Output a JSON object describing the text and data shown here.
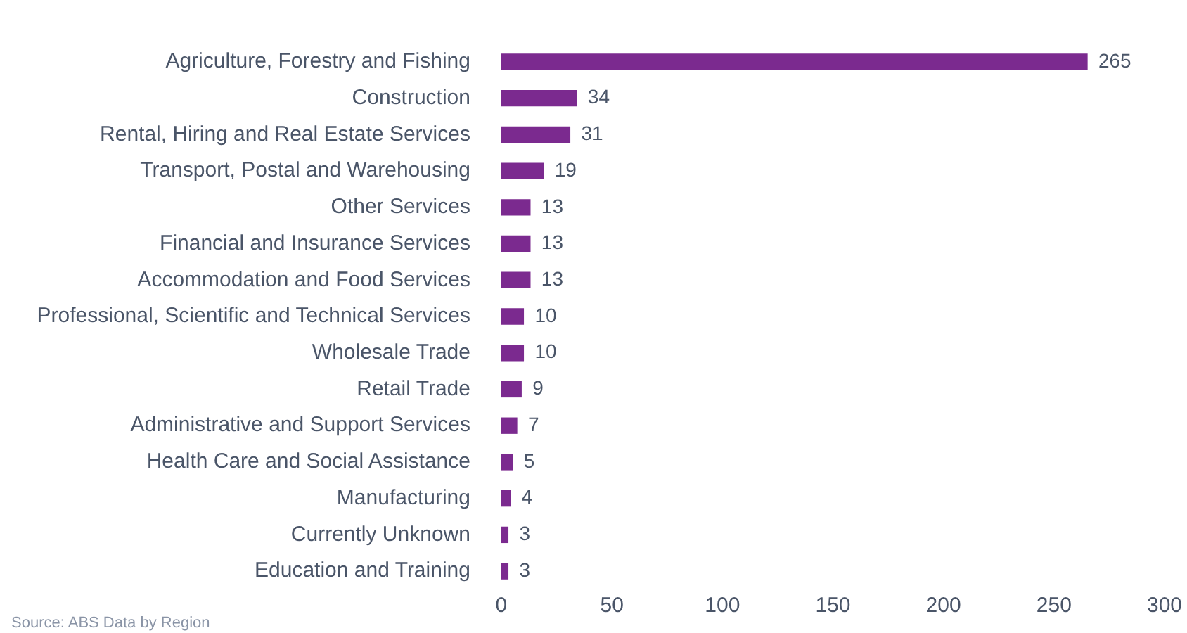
{
  "chart_data": {
    "type": "bar",
    "orientation": "horizontal",
    "categories": [
      "Agriculture, Forestry and Fishing",
      "Construction",
      "Rental, Hiring and Real Estate Services",
      "Transport, Postal and Warehousing",
      "Other Services",
      "Financial and Insurance Services",
      "Accommodation and Food Services",
      "Professional, Scientific and Technical Services",
      "Wholesale Trade",
      "Retail Trade",
      "Administrative and Support Services",
      "Health Care and Social Assistance",
      "Manufacturing",
      "Currently Unknown",
      "Education and Training"
    ],
    "values": [
      265,
      34,
      31,
      19,
      13,
      13,
      13,
      10,
      10,
      9,
      7,
      5,
      4,
      3,
      3
    ],
    "color": "#7b2a8f",
    "xlim": [
      0,
      300
    ],
    "xticks": [
      0,
      50,
      100,
      150,
      200,
      250,
      300
    ],
    "grid": false,
    "legend": false,
    "data_labels": true,
    "annotations": [
      "Source: ABS Data by Region"
    ]
  }
}
